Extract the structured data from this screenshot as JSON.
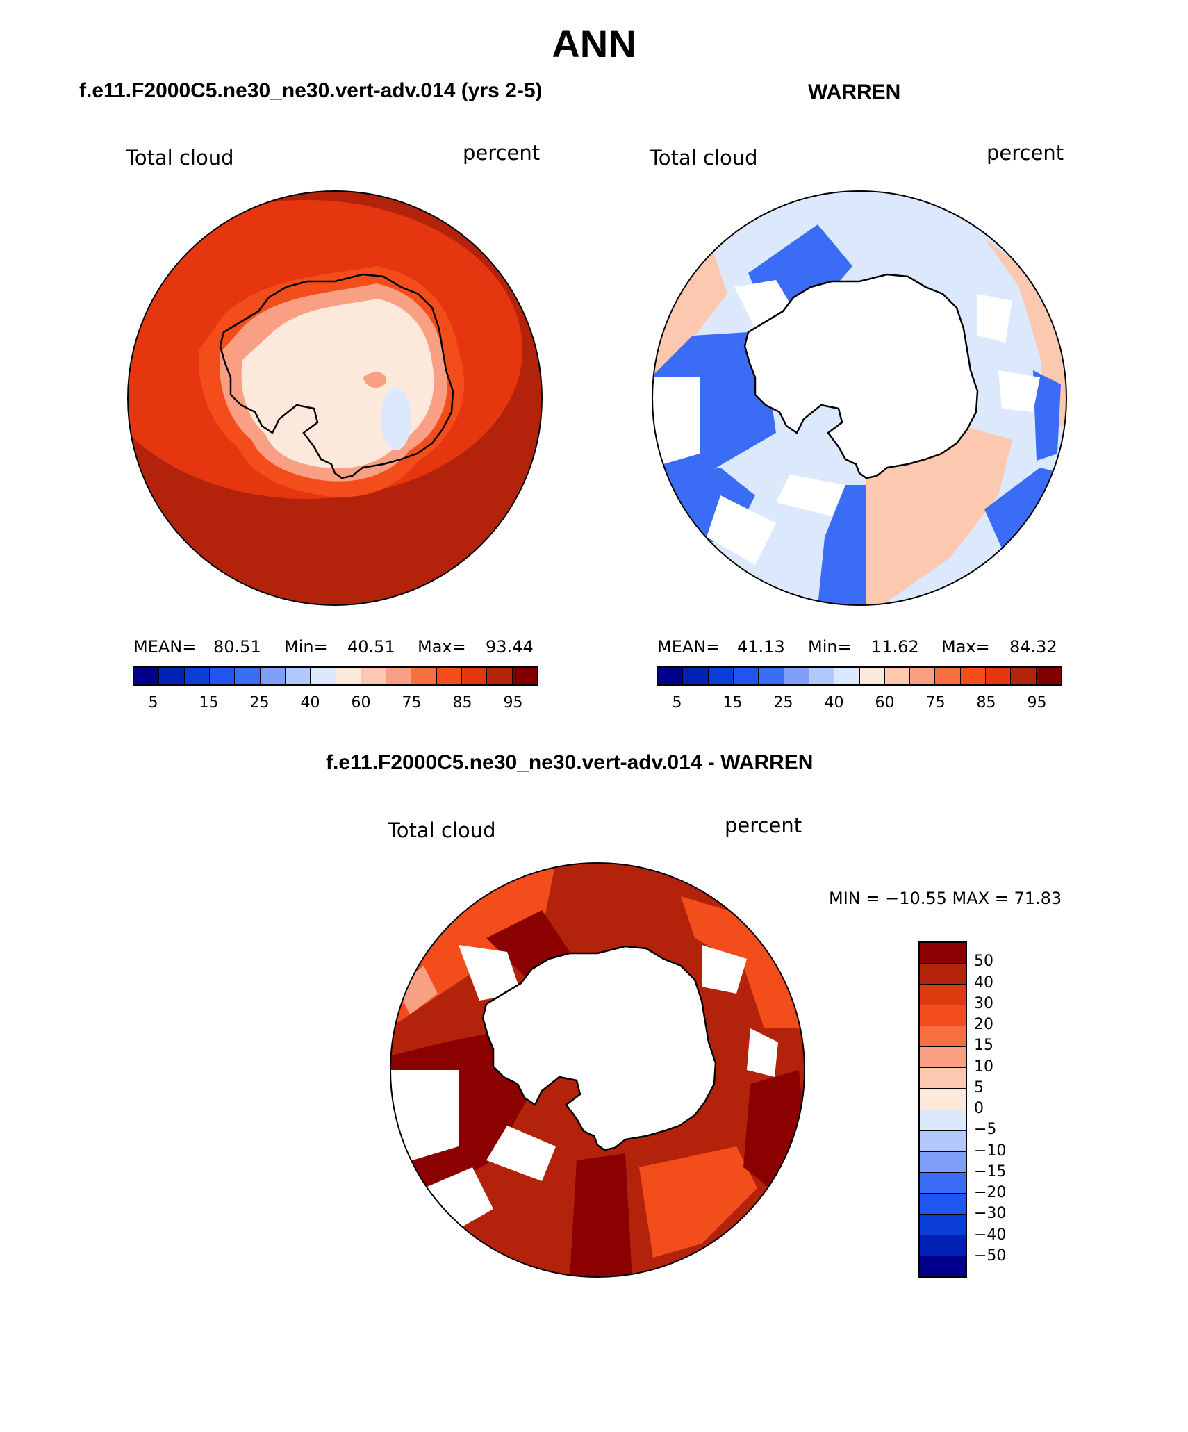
{
  "page_title": "ANN",
  "panel1": {
    "case": "f.e11.F2000C5.ne30_ne30.vert-adv.014 (yrs 2-5)",
    "variable": "Total cloud",
    "units": "percent",
    "mean_label": "MEAN=",
    "mean": "80.51",
    "min_label": "Min=",
    "min": "40.51",
    "max_label": "Max=",
    "max": "93.44"
  },
  "panel2": {
    "case": "WARREN",
    "variable": "Total cloud",
    "units": "percent",
    "mean_label": "MEAN=",
    "mean": "41.13",
    "min_label": "Min=",
    "min": "11.62",
    "max_label": "Max=",
    "max": "84.32"
  },
  "panel3": {
    "case": "f.e11.F2000C5.ne30_ne30.vert-adv.014 - WARREN",
    "variable": "Total cloud",
    "units": "percent",
    "minmax": "MIN = −10.55  MAX =   71.83"
  },
  "field_colorbar": {
    "ticks": [
      "5",
      "15",
      "25",
      "40",
      "60",
      "75",
      "85",
      "95"
    ],
    "colors": [
      "#00008c",
      "#0022b4",
      "#0a3ed6",
      "#2055f0",
      "#3a6cf5",
      "#7e9ef7",
      "#b3c8fb",
      "#dce9fd",
      "#fde9dc",
      "#fcc8b0",
      "#f9a084",
      "#f6703f",
      "#f44d1c",
      "#e63610",
      "#b3230c",
      "#800000"
    ]
  },
  "diff_colorbar": {
    "ticks": [
      "50",
      "40",
      "30",
      "20",
      "15",
      "10",
      "5",
      "0",
      "−5",
      "−10",
      "−15",
      "−20",
      "−30",
      "−40",
      "−50"
    ],
    "colors": [
      "#8b0000",
      "#b3230c",
      "#dc3a10",
      "#f44d1c",
      "#f6703f",
      "#f9a084",
      "#fcc8b0",
      "#fde9dc",
      "#dce9fd",
      "#b3c8fb",
      "#7e9ef7",
      "#3a6cf5",
      "#2055f0",
      "#0a3ed6",
      "#0022b4",
      "#00008c"
    ]
  },
  "map_colors": {
    "p1_outer": "#b3230c",
    "p1_mid": "#e63610",
    "p1_coast": "#f44d1c",
    "p1_land": "#fde9dc",
    "p1_pale": "#f9a084",
    "p1_blue": "#dce9fd",
    "p2_base": "#dce9fd",
    "p2_blue": "#3a6cf5",
    "p2_red": "#fcc8b0",
    "p3_outer": "#b3230c",
    "p3_dark": "#8b0000",
    "p3_mid": "#f44d1c",
    "p3_light": "#f9a084",
    "land": "#ffffff",
    "coast": "#000000"
  }
}
